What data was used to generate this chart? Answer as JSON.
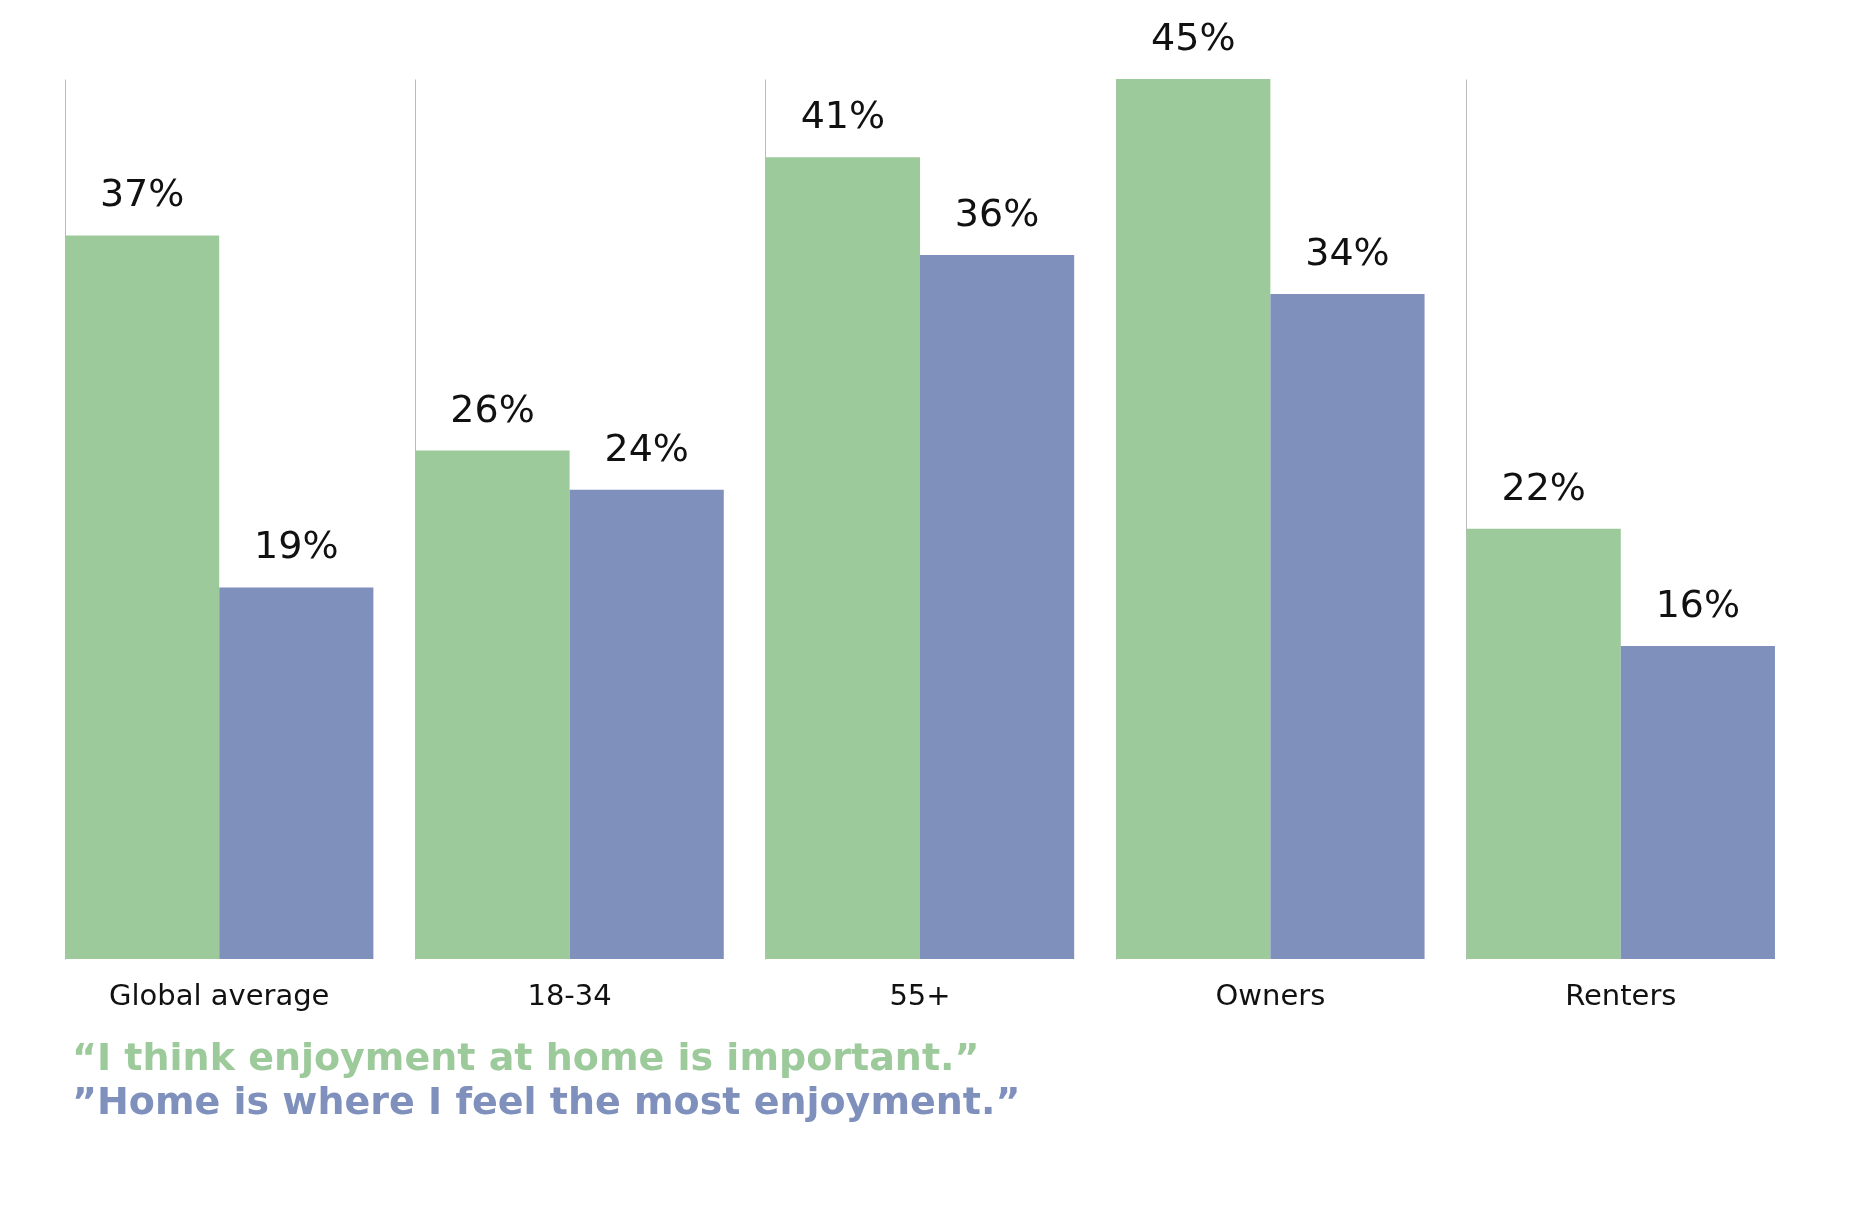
{
  "chart_data": {
    "type": "bar",
    "categories": [
      "Global average",
      "18-34",
      "55+",
      "Owners",
      "Renters"
    ],
    "series": [
      {
        "name": "“I think enjoyment at home is important.”",
        "color": "#9cca9b",
        "values": [
          37,
          26,
          41,
          45,
          22
        ],
        "value_labels": [
          "37%",
          "26%",
          "41%",
          "45%",
          "22%"
        ]
      },
      {
        "name": "”Home is where I feel the most enjoyment.”",
        "color": "#7e90bb",
        "values": [
          19,
          24,
          36,
          34,
          16
        ],
        "value_labels": [
          "19%",
          "24%",
          "36%",
          "34%",
          "16%"
        ]
      }
    ],
    "tick_labels": "x",
    "grid": "x",
    "legend": "bottom left"
  }
}
